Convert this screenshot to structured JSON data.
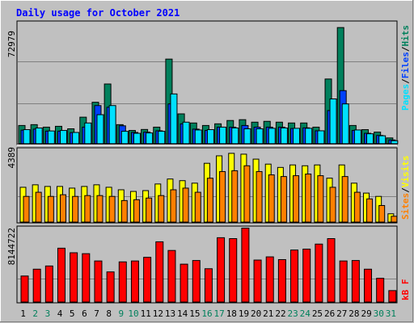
{
  "title": "Daily usage for October 2021",
  "colors": {
    "background": "#C0C0C0",
    "panel": "#C0C0C0",
    "title": "#0000FF",
    "hits": "#00805C",
    "files": "#0040FF",
    "pages": "#00E0FF",
    "visits": "#FFFF00",
    "sites": "#FF8000",
    "kbytes": "#FF0000",
    "weekday": "#000000",
    "weekend": "#00805C"
  },
  "legend": {
    "pages": "Pages",
    "files": "Files",
    "hits": "Hits",
    "sep": "/",
    "sites": "Sites",
    "visits": "Visits",
    "kbytes": "kB F"
  },
  "chart_data": [
    {
      "type": "bar",
      "title": "Hits / Files / Pages",
      "axis_max_label": "72979",
      "ylim": [
        0,
        72979
      ],
      "categories": [
        "1",
        "2",
        "3",
        "4",
        "5",
        "6",
        "7",
        "8",
        "9",
        "10",
        "11",
        "12",
        "13",
        "14",
        "15",
        "16",
        "17",
        "18",
        "19",
        "20",
        "21",
        "22",
        "23",
        "24",
        "25",
        "26",
        "27",
        "28",
        "29",
        "30",
        "31"
      ],
      "weekend": [
        2,
        3,
        9,
        10,
        16,
        17,
        23,
        24,
        30,
        31
      ],
      "series": [
        {
          "name": "Hits",
          "values": [
            11000,
            11500,
            10000,
            10500,
            9000,
            16000,
            25000,
            36000,
            11500,
            8000,
            8600,
            10000,
            51000,
            18000,
            12500,
            11000,
            12000,
            14000,
            14500,
            13000,
            13500,
            13000,
            12500,
            12500,
            10000,
            39000,
            70000,
            11000,
            8500,
            7000,
            3500
          ]
        },
        {
          "name": "Files",
          "values": [
            8200,
            8800,
            7600,
            7600,
            6700,
            10000,
            23000,
            22000,
            10800,
            6800,
            7000,
            7800,
            24000,
            12000,
            8800,
            8000,
            10000,
            10000,
            11000,
            10000,
            10000,
            10000,
            9200,
            9600,
            7800,
            20000,
            32000,
            8000,
            6300,
            5000,
            2300
          ]
        },
        {
          "name": "Pages",
          "values": [
            8500,
            9500,
            7700,
            8000,
            6800,
            12500,
            17500,
            23000,
            7500,
            6300,
            6500,
            7500,
            30000,
            13000,
            8300,
            8500,
            10000,
            9500,
            9000,
            9000,
            9300,
            9500,
            9300,
            9300,
            7800,
            27000,
            24000,
            8300,
            6000,
            4800,
            1800
          ]
        }
      ]
    },
    {
      "type": "bar",
      "title": "Visits / Sites",
      "axis_max_label": "4389",
      "ylim": [
        0,
        4389
      ],
      "categories": [
        "1",
        "2",
        "3",
        "4",
        "5",
        "6",
        "7",
        "8",
        "9",
        "10",
        "11",
        "12",
        "13",
        "14",
        "15",
        "16",
        "17",
        "18",
        "19",
        "20",
        "21",
        "22",
        "23",
        "24",
        "25",
        "26",
        "27",
        "28",
        "29",
        "30",
        "31"
      ],
      "series": [
        {
          "name": "Visits",
          "values": [
            2100,
            2250,
            2150,
            2150,
            2050,
            2150,
            2250,
            2100,
            1950,
            1850,
            1900,
            2300,
            2600,
            2500,
            2350,
            3550,
            4000,
            4150,
            4100,
            3800,
            3500,
            3300,
            3450,
            3400,
            3450,
            2650,
            3450,
            2350,
            1750,
            1550,
            500
          ]
        },
        {
          "name": "Sites",
          "values": [
            1550,
            1800,
            1550,
            1650,
            1550,
            1600,
            1600,
            1550,
            1300,
            1350,
            1450,
            1600,
            1950,
            2050,
            1800,
            2650,
            3050,
            3100,
            3400,
            3050,
            2850,
            2750,
            2800,
            2900,
            2800,
            2100,
            2750,
            1800,
            1400,
            1000,
            350
          ]
        }
      ]
    },
    {
      "type": "bar",
      "title": "kB F",
      "axis_max_label": "8144722",
      "ylim": [
        0,
        8144722
      ],
      "categories": [
        "1",
        "2",
        "3",
        "4",
        "5",
        "6",
        "7",
        "8",
        "9",
        "10",
        "11",
        "12",
        "13",
        "14",
        "15",
        "16",
        "17",
        "18",
        "19",
        "20",
        "21",
        "22",
        "23",
        "24",
        "25",
        "26",
        "27",
        "28",
        "29",
        "30",
        "31"
      ],
      "series": [
        {
          "name": "kB F",
          "values": [
            2850000,
            3600000,
            3950000,
            5900000,
            5400000,
            5300000,
            4500000,
            3300000,
            4400000,
            4500000,
            4900000,
            6600000,
            5650000,
            4150000,
            4550000,
            3650000,
            7050000,
            6950000,
            8100000,
            4600000,
            4950000,
            4650000,
            5700000,
            5800000,
            6350000,
            6950000,
            4500000,
            4550000,
            3600000,
            2600000,
            1250000
          ]
        }
      ]
    }
  ]
}
